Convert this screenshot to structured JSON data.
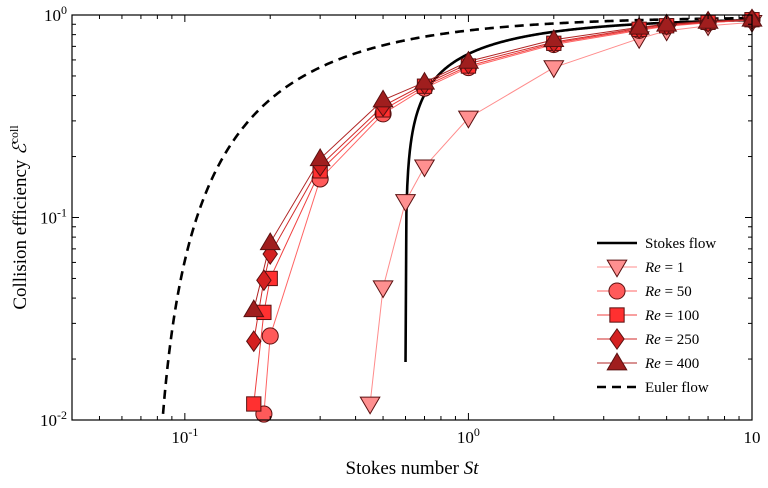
{
  "chart_data": {
    "type": "line",
    "xscale": "log",
    "yscale": "log",
    "xlim": [
      0.04,
      10
    ],
    "ylim": [
      0.01,
      1
    ],
    "xticks": [
      {
        "value": 0.1,
        "base": "10",
        "exp": "-1"
      },
      {
        "value": 1,
        "base": "10",
        "exp": "0"
      },
      {
        "value": 10,
        "base": "10",
        "exp": ""
      }
    ],
    "yticks": [
      {
        "value": 0.01,
        "base": "10",
        "exp": "-2"
      },
      {
        "value": 0.1,
        "base": "10",
        "exp": "-1"
      },
      {
        "value": 1,
        "base": "10",
        "exp": "0"
      }
    ],
    "xlabel": {
      "text": "Stokes number ",
      "math": "St"
    },
    "ylabel": {
      "text": "Collision efficiency ",
      "math": "ℰ",
      "sup": "coll"
    },
    "grid": false,
    "legend_position": "bottom-right",
    "series": [
      {
        "name": "Stokes flow",
        "style": "solid",
        "color": "#000000",
        "curve": "stokes",
        "marker": "none"
      },
      {
        "name_prefix": "Re",
        "name_value": " = 1",
        "marker": "triangle-down",
        "color": "#ff9090",
        "line_color": "#ff8c8c",
        "points": [
          [
            0.45,
            0.012
          ],
          [
            0.5,
            0.045
          ],
          [
            0.6,
            0.12
          ],
          [
            0.7,
            0.178
          ],
          [
            1.0,
            0.31
          ],
          [
            2.0,
            0.55
          ],
          [
            4.0,
            0.765
          ],
          [
            5.0,
            0.835
          ],
          [
            7.0,
            0.885
          ],
          [
            10.0,
            0.92
          ]
        ]
      },
      {
        "name_prefix": "Re",
        "name_value": " = 50",
        "marker": "circle",
        "color": "#ff5a5a",
        "line_color": "#ff6464",
        "points": [
          [
            0.19,
            0.0107
          ],
          [
            0.2,
            0.026
          ],
          [
            0.3,
            0.155
          ],
          [
            0.5,
            0.325
          ],
          [
            0.7,
            0.435
          ],
          [
            1.0,
            0.55
          ],
          [
            2.0,
            0.715
          ],
          [
            4.0,
            0.84
          ],
          [
            5.0,
            0.88
          ],
          [
            7.0,
            0.915
          ],
          [
            10.0,
            0.945
          ]
        ]
      },
      {
        "name_prefix": "Re",
        "name_value": " = 100",
        "marker": "square",
        "color": "#ff3030",
        "line_color": "#f04040",
        "points": [
          [
            0.175,
            0.012
          ],
          [
            0.19,
            0.034
          ],
          [
            0.2,
            0.05
          ],
          [
            0.3,
            0.17
          ],
          [
            0.5,
            0.34
          ],
          [
            0.7,
            0.445
          ],
          [
            1.0,
            0.56
          ],
          [
            2.0,
            0.725
          ],
          [
            4.0,
            0.85
          ],
          [
            5.0,
            0.885
          ],
          [
            7.0,
            0.92
          ],
          [
            10.0,
            0.948
          ]
        ]
      },
      {
        "name_prefix": "Re",
        "name_value": " = 250",
        "marker": "diamond",
        "color": "#d42020",
        "line_color": "#d02a2a",
        "points": [
          [
            0.175,
            0.0245
          ],
          [
            0.19,
            0.049
          ],
          [
            0.2,
            0.066
          ],
          [
            0.3,
            0.18
          ],
          [
            0.5,
            0.355
          ],
          [
            0.7,
            0.455
          ],
          [
            1.0,
            0.575
          ],
          [
            2.0,
            0.735
          ],
          [
            4.0,
            0.86
          ],
          [
            5.0,
            0.895
          ],
          [
            7.0,
            0.925
          ],
          [
            10.0,
            0.95
          ]
        ]
      },
      {
        "name_prefix": "Re",
        "name_value": " = 400",
        "marker": "triangle-up",
        "color": "#a01e1e",
        "line_color": "#b02424",
        "points": [
          [
            0.175,
            0.035
          ],
          [
            0.2,
            0.075
          ],
          [
            0.3,
            0.195
          ],
          [
            0.5,
            0.38
          ],
          [
            0.7,
            0.465
          ],
          [
            1.0,
            0.59
          ],
          [
            2.0,
            0.755
          ],
          [
            4.0,
            0.87
          ],
          [
            5.0,
            0.9
          ],
          [
            7.0,
            0.93
          ],
          [
            10.0,
            0.952
          ]
        ]
      },
      {
        "name": "Euler flow",
        "style": "dashed",
        "color": "#000000",
        "curve": "euler",
        "marker": "none"
      }
    ]
  }
}
